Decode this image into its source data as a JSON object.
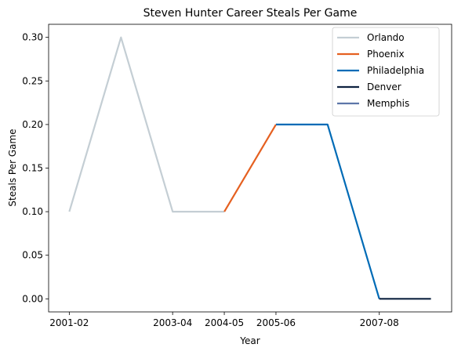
{
  "chart_data": {
    "type": "line",
    "title": "Steven Hunter Career Steals Per Game",
    "xlabel": "Year",
    "ylabel": "Steals Per Game",
    "x_tick_labels": [
      "2001-02",
      "2003-04",
      "2004-05",
      "2005-06",
      "2007-08"
    ],
    "x_tick_positions": [
      0,
      2,
      3,
      4,
      6
    ],
    "xlim": [
      -0.4,
      7.4
    ],
    "ylim": [
      -0.015,
      0.315
    ],
    "y_ticks": [
      0.0,
      0.05,
      0.1,
      0.15,
      0.2,
      0.25,
      0.3
    ],
    "y_tick_labels": [
      "0.00",
      "0.05",
      "0.10",
      "0.15",
      "0.20",
      "0.25",
      "0.30"
    ],
    "grid": false,
    "legend_position": "top-right",
    "series": [
      {
        "name": "Orlando",
        "color": "#c4ced4",
        "points": [
          [
            0,
            0.1
          ],
          [
            1,
            0.3
          ],
          [
            2,
            0.1
          ],
          [
            3,
            0.1
          ]
        ]
      },
      {
        "name": "Phoenix",
        "color": "#e56020",
        "points": [
          [
            3,
            0.1
          ],
          [
            4,
            0.2
          ]
        ]
      },
      {
        "name": "Philadelphia",
        "color": "#006bb6",
        "points": [
          [
            4,
            0.2
          ],
          [
            5,
            0.2
          ],
          [
            6,
            0.0
          ]
        ]
      },
      {
        "name": "Denver",
        "color": "#0e2240",
        "points": [
          [
            6,
            0.0
          ],
          [
            7,
            0.0
          ]
        ]
      },
      {
        "name": "Memphis",
        "color": "#5d76a9",
        "points": []
      }
    ]
  }
}
